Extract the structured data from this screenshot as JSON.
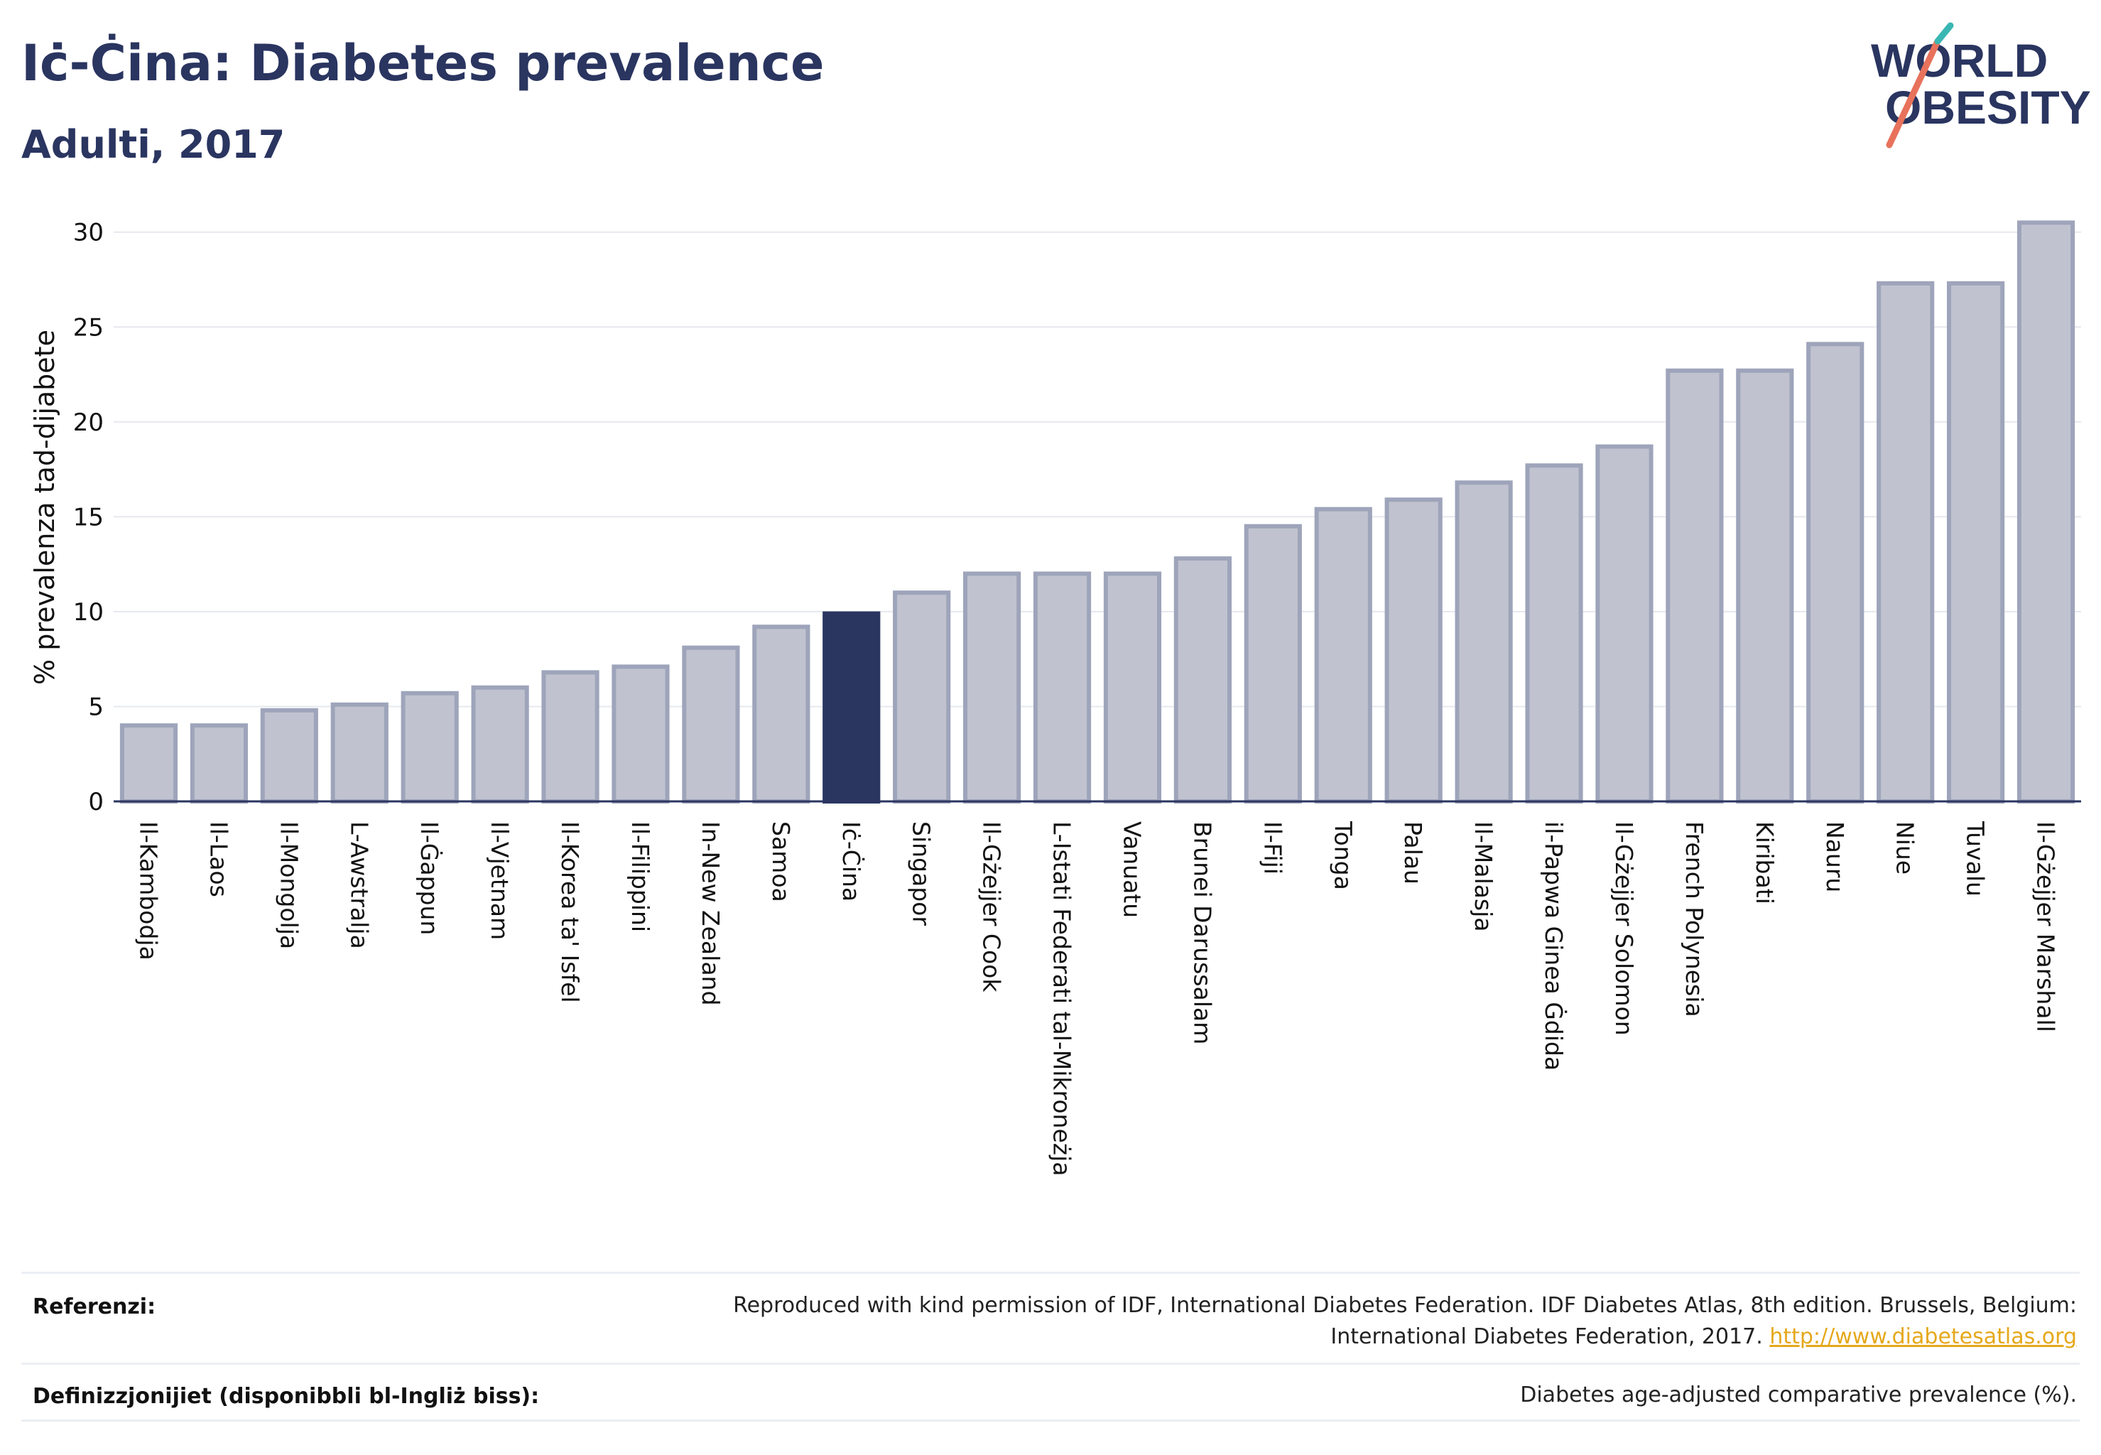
{
  "title": "Iċ-Ċina: Diabetes prevalence",
  "subtitle": "Adulti, 2017",
  "logo": {
    "line1": "WORLD",
    "line2": "OBESITY"
  },
  "chart_data": {
    "type": "bar",
    "ylabel": "% prevalenza tad-dijabete",
    "ylim": [
      0,
      31
    ],
    "yticks": [
      0,
      5,
      10,
      15,
      20,
      25,
      30
    ],
    "grid": true,
    "highlight": "Iċ-Ċina",
    "colors": {
      "bar": "#c0c3cf",
      "bar_edge": "#9ea4ba",
      "highlight": "#2a3560",
      "grid": "#e6e8ee",
      "axis": "#2a3560"
    },
    "categories": [
      "Il-Kambodja",
      "Il-Laos",
      "Il-Mongolja",
      "L-Awstralja",
      "Il-Ġappun",
      "Il-Vjetnam",
      "Il-Korea ta' Isfel",
      "Il-Filippini",
      "In-New Zealand",
      "Samoa",
      "Iċ-Ċina",
      "Singapor",
      "Il-Gżejjer Cook",
      "L-Istati Federati tal-Mikroneżja",
      "Vanuatu",
      "Brunei Darussalam",
      "Il-Fiji",
      "Tonga",
      "Palau",
      "Il-Malasja",
      "il-Papwa Ginea Ġdida",
      "Il-Gżejjer Solomon",
      "French Polynesia",
      "Kiribati",
      "Nauru",
      "Niue",
      "Tuvalu",
      "Il-Gżejjer Marshall"
    ],
    "values": [
      4.0,
      4.0,
      4.8,
      5.1,
      5.7,
      6.0,
      6.8,
      7.1,
      8.1,
      9.2,
      9.9,
      11.0,
      12.0,
      12.0,
      12.0,
      12.8,
      14.5,
      15.4,
      15.9,
      16.8,
      17.7,
      18.7,
      22.7,
      22.7,
      24.1,
      27.3,
      27.3,
      30.5
    ]
  },
  "footer": {
    "references_label": "Referenzi:",
    "references_text_1": "Reproduced with kind permission of IDF, International Diabetes Federation. IDF Diabetes Atlas, 8th edition. Brussels, Belgium:",
    "references_text_2": "International Diabetes Federation, 2017.",
    "references_link": "http://www.diabetesatlas.org",
    "definitions_label": "Definizzjonijiet (disponibbli bl-Ingliż biss):",
    "definitions_text": "Diabetes age-adjusted comparative prevalence (%)."
  }
}
